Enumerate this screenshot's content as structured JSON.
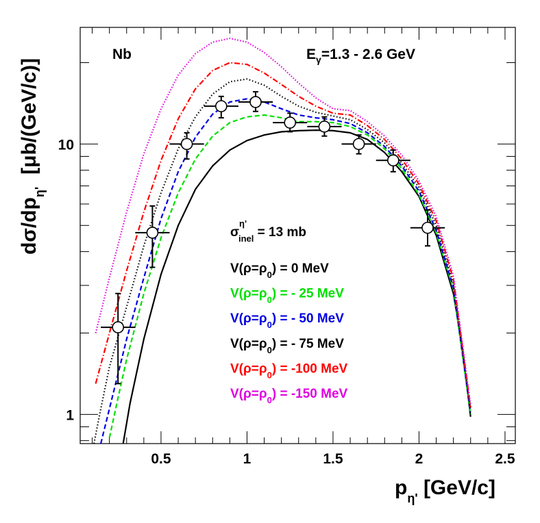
{
  "chart_data": {
    "type": "line",
    "target": "Nb",
    "energy_label": "E",
    "energy_sub": "γ",
    "energy_range": "=1.3 - 2.6 GeV",
    "xlabel_main": "p",
    "xlabel_sub": "η'",
    "xlabel_unit": " [GeV/c]",
    "ylabel_main": "dσ/dp",
    "ylabel_sub": "η'",
    "ylabel_unit": "[μb/(GeV/c)]",
    "xlim": [
      0.03,
      2.56
    ],
    "ylim": [
      0.78,
      27
    ],
    "yscale": "log",
    "x_ticks": [
      {
        "value": 0.5,
        "label": "0.5"
      },
      {
        "value": 1.0,
        "label": "1"
      },
      {
        "value": 1.5,
        "label": "1.5"
      },
      {
        "value": 2.0,
        "label": "2"
      },
      {
        "value": 2.5,
        "label": "2.5"
      }
    ],
    "y_ticks": [
      {
        "value": 1,
        "label": "1"
      },
      {
        "value": 10,
        "label": "10"
      }
    ],
    "sigma_label": {
      "sym": "σ",
      "sub": "inel",
      "sup": "η'",
      "text": " = 13 mb"
    },
    "legend": [
      {
        "prefix": "V(ρ=ρ",
        "sub": "0",
        "suffix": ") =    0 MeV",
        "color": "#000000"
      },
      {
        "prefix": "V(ρ=ρ",
        "sub": "0",
        "suffix": ") = - 25 MeV",
        "color": "#00e000"
      },
      {
        "prefix": "V(ρ=ρ",
        "sub": "0",
        "suffix": ") = - 50 MeV",
        "color": "#0000e0"
      },
      {
        "prefix": "V(ρ=ρ",
        "sub": "0",
        "suffix": ") = - 75 MeV",
        "color": "#000000"
      },
      {
        "prefix": "V(ρ=ρ",
        "sub": "0",
        "suffix": ") = -100 MeV",
        "color": "#ff0000"
      },
      {
        "prefix": "V(ρ=ρ",
        "sub": "0",
        "suffix": ") = -150 MeV",
        "color": "#e000e0"
      }
    ],
    "data_points": [
      {
        "x": 0.25,
        "y": 2.1,
        "xerr": 0.1,
        "ylow": 1.3,
        "yhigh": 2.8
      },
      {
        "x": 0.45,
        "y": 4.7,
        "xerr": 0.1,
        "ylow": 3.5,
        "yhigh": 5.9
      },
      {
        "x": 0.65,
        "y": 10.0,
        "xerr": 0.1,
        "ylow": 8.8,
        "yhigh": 11.0
      },
      {
        "x": 0.85,
        "y": 13.8,
        "xerr": 0.1,
        "ylow": 12.5,
        "yhigh": 15.0
      },
      {
        "x": 1.05,
        "y": 14.3,
        "xerr": 0.1,
        "ylow": 13.2,
        "yhigh": 15.6
      },
      {
        "x": 1.25,
        "y": 12.0,
        "xerr": 0.1,
        "ylow": 11.1,
        "yhigh": 13.0
      },
      {
        "x": 1.45,
        "y": 11.6,
        "xerr": 0.1,
        "ylow": 10.7,
        "yhigh": 12.6
      },
      {
        "x": 1.65,
        "y": 10.0,
        "xerr": 0.1,
        "ylow": 9.2,
        "yhigh": 10.8
      },
      {
        "x": 1.85,
        "y": 8.7,
        "xerr": 0.1,
        "ylow": 7.9,
        "yhigh": 9.5
      },
      {
        "x": 2.05,
        "y": 4.9,
        "xerr": 0.1,
        "ylow": 4.2,
        "yhigh": 5.7
      }
    ],
    "series": [
      {
        "name": "V = 0 MeV",
        "color": "#000000",
        "dash": "",
        "points": [
          [
            0.28,
            0.78
          ],
          [
            0.32,
            1.1
          ],
          [
            0.4,
            1.9
          ],
          [
            0.5,
            3.3
          ],
          [
            0.6,
            5.0
          ],
          [
            0.7,
            6.8
          ],
          [
            0.8,
            8.3
          ],
          [
            0.9,
            9.5
          ],
          [
            1.0,
            10.3
          ],
          [
            1.1,
            10.8
          ],
          [
            1.2,
            11.1
          ],
          [
            1.3,
            11.2
          ],
          [
            1.4,
            11.25
          ],
          [
            1.5,
            11.2
          ],
          [
            1.6,
            11.0
          ],
          [
            1.7,
            10.4
          ],
          [
            1.8,
            9.3
          ],
          [
            1.9,
            7.9
          ],
          [
            2.0,
            6.4
          ],
          [
            2.1,
            4.6
          ],
          [
            2.2,
            2.8
          ],
          [
            2.25,
            1.8
          ],
          [
            2.3,
            0.98
          ]
        ]
      },
      {
        "name": "V = -25 MeV",
        "color": "#00e000",
        "dash": "7,4",
        "points": [
          [
            0.2,
            0.82
          ],
          [
            0.25,
            1.15
          ],
          [
            0.3,
            1.6
          ],
          [
            0.4,
            2.8
          ],
          [
            0.5,
            4.5
          ],
          [
            0.6,
            6.6
          ],
          [
            0.7,
            8.8
          ],
          [
            0.8,
            10.7
          ],
          [
            0.9,
            12.0
          ],
          [
            1.0,
            12.6
          ],
          [
            1.1,
            12.8
          ],
          [
            1.2,
            12.5
          ],
          [
            1.3,
            12.1
          ],
          [
            1.4,
            12.1
          ],
          [
            1.5,
            12.0
          ],
          [
            1.6,
            11.6
          ],
          [
            1.7,
            10.8
          ],
          [
            1.8,
            9.6
          ],
          [
            1.9,
            8.1
          ],
          [
            2.0,
            6.5
          ],
          [
            2.1,
            4.7
          ],
          [
            2.2,
            2.9
          ],
          [
            2.3,
            1.0
          ]
        ]
      },
      {
        "name": "V = -50 MeV",
        "color": "#0000e0",
        "dash": "7,4",
        "points": [
          [
            0.15,
            0.78
          ],
          [
            0.2,
            1.05
          ],
          [
            0.3,
            1.9
          ],
          [
            0.4,
            3.2
          ],
          [
            0.5,
            5.3
          ],
          [
            0.6,
            7.9
          ],
          [
            0.7,
            10.6
          ],
          [
            0.8,
            12.9
          ],
          [
            0.9,
            14.3
          ],
          [
            1.0,
            14.7
          ],
          [
            1.1,
            14.3
          ],
          [
            1.2,
            13.5
          ],
          [
            1.3,
            12.8
          ],
          [
            1.4,
            12.5
          ],
          [
            1.5,
            12.3
          ],
          [
            1.6,
            11.9
          ],
          [
            1.7,
            11.0
          ],
          [
            1.8,
            9.8
          ],
          [
            1.9,
            8.3
          ],
          [
            2.0,
            6.7
          ],
          [
            2.1,
            4.8
          ],
          [
            2.2,
            2.95
          ],
          [
            2.3,
            1.02
          ]
        ]
      },
      {
        "name": "V = -75 MeV",
        "color": "#000000",
        "dash": "1.5,3",
        "points": [
          [
            0.11,
            0.78
          ],
          [
            0.15,
            1.05
          ],
          [
            0.2,
            1.5
          ],
          [
            0.3,
            2.5
          ],
          [
            0.4,
            4.2
          ],
          [
            0.5,
            6.6
          ],
          [
            0.6,
            9.6
          ],
          [
            0.7,
            12.6
          ],
          [
            0.8,
            15.3
          ],
          [
            0.9,
            17.0
          ],
          [
            1.0,
            17.4
          ],
          [
            1.1,
            16.5
          ],
          [
            1.2,
            15.0
          ],
          [
            1.3,
            13.8
          ],
          [
            1.4,
            13.1
          ],
          [
            1.5,
            12.7
          ],
          [
            1.6,
            12.3
          ],
          [
            1.7,
            11.3
          ],
          [
            1.8,
            10.1
          ],
          [
            1.9,
            8.5
          ],
          [
            2.0,
            6.9
          ],
          [
            2.1,
            5.0
          ],
          [
            2.2,
            3.05
          ],
          [
            2.3,
            1.04
          ]
        ]
      },
      {
        "name": "V = -100 MeV",
        "color": "#ff0000",
        "dash": "8,3,1.5,3",
        "points": [
          [
            0.12,
            1.3
          ],
          [
            0.2,
            2.0
          ],
          [
            0.3,
            3.4
          ],
          [
            0.4,
            5.6
          ],
          [
            0.5,
            8.7
          ],
          [
            0.6,
            12.4
          ],
          [
            0.7,
            16.0
          ],
          [
            0.8,
            18.7
          ],
          [
            0.9,
            20.0
          ],
          [
            1.0,
            19.7
          ],
          [
            1.1,
            18.3
          ],
          [
            1.2,
            16.6
          ],
          [
            1.3,
            15.0
          ],
          [
            1.4,
            13.8
          ],
          [
            1.5,
            13.0
          ],
          [
            1.6,
            12.8
          ],
          [
            1.7,
            11.7
          ],
          [
            1.8,
            10.4
          ],
          [
            1.9,
            8.8
          ],
          [
            2.0,
            7.1
          ],
          [
            2.1,
            5.2
          ],
          [
            2.2,
            3.15
          ],
          [
            2.3,
            1.06
          ]
        ]
      },
      {
        "name": "V = -150 MeV",
        "color": "#e000e0",
        "dash": "1.5,2.5",
        "points": [
          [
            0.12,
            2.0
          ],
          [
            0.2,
            3.2
          ],
          [
            0.3,
            5.6
          ],
          [
            0.4,
            9.2
          ],
          [
            0.5,
            13.5
          ],
          [
            0.6,
            18.0
          ],
          [
            0.7,
            21.6
          ],
          [
            0.8,
            23.8
          ],
          [
            0.9,
            24.6
          ],
          [
            1.0,
            23.8
          ],
          [
            1.1,
            21.8
          ],
          [
            1.2,
            19.3
          ],
          [
            1.3,
            16.8
          ],
          [
            1.4,
            14.8
          ],
          [
            1.5,
            13.5
          ],
          [
            1.6,
            13.3
          ],
          [
            1.7,
            12.1
          ],
          [
            1.8,
            10.7
          ],
          [
            1.9,
            9.1
          ],
          [
            2.0,
            7.3
          ],
          [
            2.1,
            5.4
          ],
          [
            2.2,
            3.25
          ],
          [
            2.3,
            1.08
          ]
        ]
      }
    ]
  }
}
